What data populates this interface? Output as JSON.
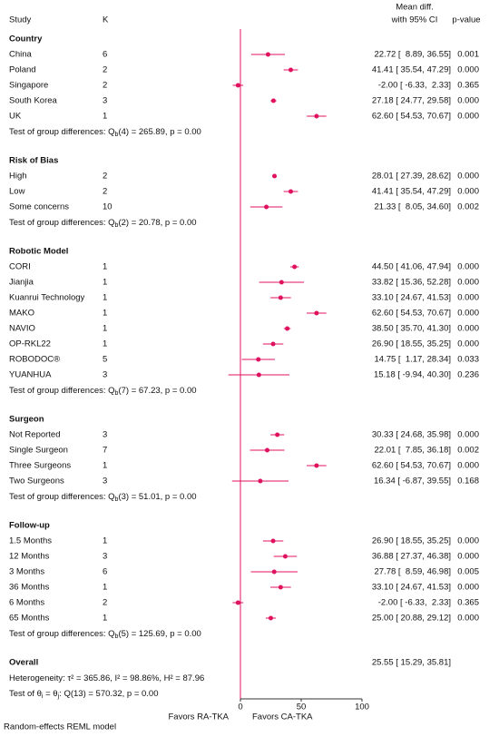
{
  "chart_data": {
    "type": "forest",
    "header": {
      "study": "Study",
      "k": "K",
      "effect": [
        "Mean diff.",
        "with 95% CI"
      ],
      "p": "p-value"
    },
    "color": "#e0115f",
    "xlim": [
      0,
      100
    ],
    "xticks": [
      0,
      50,
      100
    ],
    "x_labels": [
      "Favors RA-TKA",
      "Favors CA-TKA"
    ],
    "footnote": "Random-effects REML model",
    "groups": [
      {
        "name": "Country",
        "rows": [
          {
            "study": "China",
            "k": 6,
            "mean": 22.72,
            "lower": 8.89,
            "upper": 36.55,
            "label": "22.72 [  8.89, 36.55]",
            "p": "0.001"
          },
          {
            "study": "Poland",
            "k": 2,
            "mean": 41.41,
            "lower": 35.54,
            "upper": 47.29,
            "label": "41.41 [ 35.54, 47.29]",
            "p": "0.000"
          },
          {
            "study": "Singapore",
            "k": 2,
            "mean": -2.0,
            "lower": -6.33,
            "upper": 2.33,
            "label": "-2.00 [ -6.33,  2.33]",
            "p": "0.365"
          },
          {
            "study": "South Korea",
            "k": 3,
            "mean": 27.18,
            "lower": 24.77,
            "upper": 29.58,
            "label": "27.18 [ 24.77, 29.58]",
            "p": "0.000"
          },
          {
            "study": "UK",
            "k": 1,
            "mean": 62.6,
            "lower": 54.53,
            "upper": 70.67,
            "label": "62.60 [ 54.53, 70.67]",
            "p": "0.000"
          }
        ],
        "test": [
          "Test of group differences: Q",
          "b",
          "(4) = 265.89, p = 0.00"
        ]
      },
      {
        "name": "Risk of Bias",
        "rows": [
          {
            "study": "High",
            "k": 2,
            "mean": 28.01,
            "lower": 27.39,
            "upper": 28.62,
            "label": "28.01 [ 27.39, 28.62]",
            "p": "0.000"
          },
          {
            "study": "Low",
            "k": 2,
            "mean": 41.41,
            "lower": 35.54,
            "upper": 47.29,
            "label": "41.41 [ 35.54, 47.29]",
            "p": "0.000"
          },
          {
            "study": "Some concerns",
            "k": 10,
            "mean": 21.33,
            "lower": 8.05,
            "upper": 34.6,
            "label": "21.33 [  8.05, 34.60]",
            "p": "0.002"
          }
        ],
        "test": [
          "Test of group differences: Q",
          "b",
          "(2) = 20.78, p = 0.00"
        ]
      },
      {
        "name": "Robotic Model",
        "rows": [
          {
            "study": "CORI",
            "k": 1,
            "mean": 44.5,
            "lower": 41.06,
            "upper": 47.94,
            "label": "44.50 [ 41.06, 47.94]",
            "p": "0.000"
          },
          {
            "study": "Jianjia",
            "k": 1,
            "mean": 33.82,
            "lower": 15.36,
            "upper": 52.28,
            "label": "33.82 [ 15.36, 52.28]",
            "p": "0.000"
          },
          {
            "study": "Kuanrui Technology",
            "k": 1,
            "mean": 33.1,
            "lower": 24.67,
            "upper": 41.53,
            "label": "33.10 [ 24.67, 41.53]",
            "p": "0.000"
          },
          {
            "study": "MAKO",
            "k": 1,
            "mean": 62.6,
            "lower": 54.53,
            "upper": 70.67,
            "label": "62.60 [ 54.53, 70.67]",
            "p": "0.000"
          },
          {
            "study": "NAVIO",
            "k": 1,
            "mean": 38.5,
            "lower": 35.7,
            "upper": 41.3,
            "label": "38.50 [ 35.70, 41.30]",
            "p": "0.000"
          },
          {
            "study": "OP-RKL22",
            "k": 1,
            "mean": 26.9,
            "lower": 18.55,
            "upper": 35.25,
            "label": "26.90 [ 18.55, 35.25]",
            "p": "0.000"
          },
          {
            "study": "ROBODOC®",
            "k": 5,
            "mean": 14.75,
            "lower": 1.17,
            "upper": 28.34,
            "label": "14.75 [  1.17, 28.34]",
            "p": "0.033"
          },
          {
            "study": "YUANHUA",
            "k": 3,
            "mean": 15.18,
            "lower": -9.94,
            "upper": 40.3,
            "label": "15.18 [ -9.94, 40.30]",
            "p": "0.236"
          }
        ],
        "test": [
          "Test of group differences: Q",
          "b",
          "(7) = 67.23, p = 0.00"
        ]
      },
      {
        "name": "Surgeon",
        "rows": [
          {
            "study": "Not Reported",
            "k": 3,
            "mean": 30.33,
            "lower": 24.68,
            "upper": 35.98,
            "label": "30.33 [ 24.68, 35.98]",
            "p": "0.000"
          },
          {
            "study": "Single Surgeon",
            "k": 7,
            "mean": 22.01,
            "lower": 7.85,
            "upper": 36.18,
            "label": "22.01 [  7.85, 36.18]",
            "p": "0.002"
          },
          {
            "study": "Three Surgeons",
            "k": 1,
            "mean": 62.6,
            "lower": 54.53,
            "upper": 70.67,
            "label": "62.60 [ 54.53, 70.67]",
            "p": "0.000"
          },
          {
            "study": "Two Surgeons",
            "k": 3,
            "mean": 16.34,
            "lower": -6.87,
            "upper": 39.55,
            "label": "16.34 [ -6.87, 39.55]",
            "p": "0.168"
          }
        ],
        "test": [
          "Test of group differences: Q",
          "b",
          "(3) = 51.01, p = 0.00"
        ]
      },
      {
        "name": "Follow-up",
        "rows": [
          {
            "study": "1.5 Months",
            "k": 1,
            "mean": 26.9,
            "lower": 18.55,
            "upper": 35.25,
            "label": "26.90 [ 18.55, 35.25]",
            "p": "0.000"
          },
          {
            "study": "12 Months",
            "k": 3,
            "mean": 36.88,
            "lower": 27.37,
            "upper": 46.38,
            "label": "36.88 [ 27.37, 46.38]",
            "p": "0.000"
          },
          {
            "study": "3 Months",
            "k": 6,
            "mean": 27.78,
            "lower": 8.59,
            "upper": 46.98,
            "label": "27.78 [  8.59, 46.98]",
            "p": "0.005"
          },
          {
            "study": "36 Months",
            "k": 1,
            "mean": 33.1,
            "lower": 24.67,
            "upper": 41.53,
            "label": "33.10 [ 24.67, 41.53]",
            "p": "0.000"
          },
          {
            "study": "6 Months",
            "k": 2,
            "mean": -2.0,
            "lower": -6.33,
            "upper": 2.33,
            "label": "-2.00 [ -6.33,  2.33]",
            "p": "0.365"
          },
          {
            "study": "65 Months",
            "k": 1,
            "mean": 25.0,
            "lower": 20.88,
            "upper": 29.12,
            "label": "25.00 [ 20.88, 29.12]",
            "p": "0.000"
          }
        ],
        "test": [
          "Test of group differences: Q",
          "b",
          "(5) = 125.69, p = 0.00"
        ]
      }
    ],
    "overall": {
      "name": "Overall",
      "label": "25.55 [ 15.29, 35.81]",
      "lines": [
        [
          "Heterogeneity: τ² = 365.86, I² = 98.86%, H² = 87.96"
        ],
        [
          "Test of θ",
          "i",
          " = θ",
          "j",
          ": Q(13) = 570.32, p = 0.00"
        ]
      ]
    }
  }
}
